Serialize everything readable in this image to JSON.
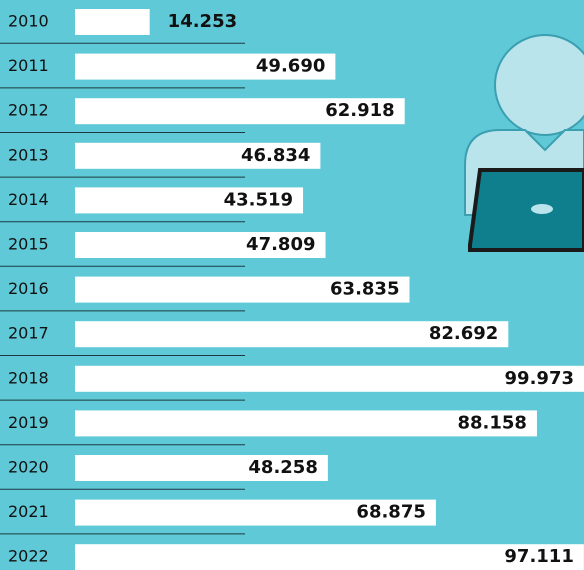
{
  "chart_data": {
    "type": "bar",
    "orientation": "horizontal",
    "categories": [
      "2010",
      "2011",
      "2012",
      "2013",
      "2014",
      "2015",
      "2016",
      "2017",
      "2018",
      "2019",
      "2020",
      "2021",
      "2022"
    ],
    "values": [
      14253,
      49690,
      62918,
      46834,
      43519,
      47809,
      63835,
      82692,
      99973,
      88158,
      48258,
      68875,
      97111
    ],
    "value_labels": [
      "14.253",
      "49.690",
      "62.918",
      "46.834",
      "43.519",
      "47.809",
      "63.835",
      "82.692",
      "99.973",
      "88.158",
      "48.258",
      "68.875",
      "97.111"
    ],
    "color": "#ffffff"
  }
}
